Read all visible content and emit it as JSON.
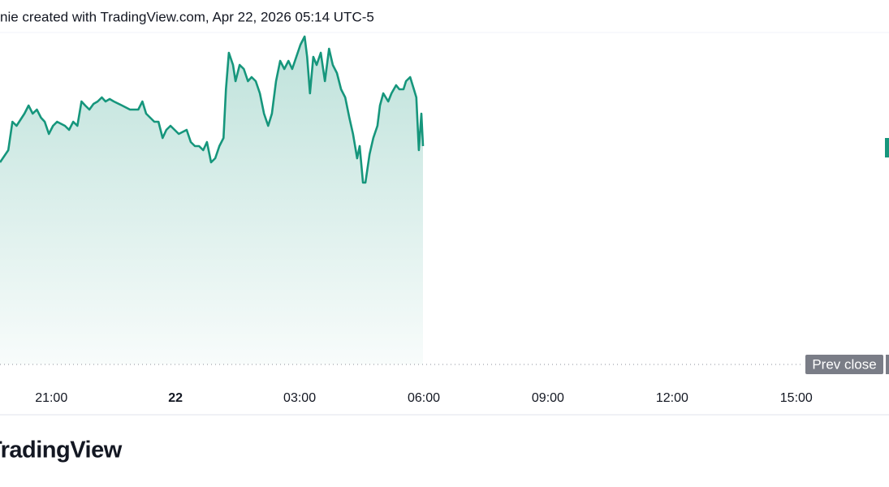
{
  "chart_data": {
    "type": "area",
    "title": "nie created with TradingView.com, Apr 22, 2026 05:14 UTC-5",
    "brand": "TradingView",
    "color": "#16967c",
    "x": [
      -4.24,
      -4.04,
      -3.94,
      -3.84,
      -3.65,
      -3.55,
      -3.45,
      -3.35,
      -3.25,
      -3.16,
      -3.06,
      -2.96,
      -2.86,
      -2.67,
      -2.57,
      -2.47,
      -2.37,
      -2.27,
      -2.18,
      -2.08,
      -1.98,
      -1.88,
      -1.78,
      -1.69,
      -1.59,
      -1.49,
      -1.29,
      -1.1,
      -0.9,
      -0.8,
      -0.71,
      -0.51,
      -0.41,
      -0.31,
      -0.22,
      -0.12,
      0.08,
      0.27,
      0.37,
      0.47,
      0.57,
      0.67,
      0.76,
      0.86,
      0.96,
      1.06,
      1.16,
      1.22,
      1.29,
      1.39,
      1.45,
      1.55,
      1.65,
      1.75,
      1.84,
      1.94,
      2.04,
      2.14,
      2.24,
      2.33,
      2.43,
      2.53,
      2.63,
      2.73,
      2.82,
      2.92,
      3.02,
      3.12,
      3.18,
      3.25,
      3.33,
      3.41,
      3.51,
      3.61,
      3.71,
      3.8,
      3.9,
      4.0,
      4.1,
      4.2,
      4.29,
      4.39,
      4.45,
      4.53,
      4.59,
      4.69,
      4.78,
      4.88,
      4.94,
      5.02,
      5.14,
      5.22,
      5.33,
      5.41,
      5.51,
      5.57,
      5.67,
      5.76,
      5.82,
      5.88,
      5.94,
      5.98
    ],
    "values": [
      249,
      264,
      299,
      294,
      309,
      319,
      309,
      314,
      304,
      299,
      284,
      294,
      299,
      294,
      289,
      299,
      294,
      324,
      319,
      314,
      321,
      324,
      329,
      324,
      327,
      324,
      319,
      314,
      314,
      324,
      309,
      299,
      299,
      279,
      289,
      294,
      284,
      289,
      274,
      269,
      269,
      264,
      274,
      249,
      254,
      269,
      279,
      339,
      384,
      369,
      349,
      369,
      364,
      349,
      354,
      349,
      334,
      309,
      294,
      309,
      349,
      374,
      364,
      374,
      364,
      379,
      394,
      404,
      379,
      334,
      379,
      369,
      384,
      349,
      389,
      369,
      359,
      339,
      329,
      304,
      284,
      254,
      269,
      224,
      224,
      259,
      279,
      294,
      319,
      334,
      324,
      334,
      344,
      339,
      339,
      349,
      354,
      339,
      329,
      264,
      309,
      269
    ],
    "xlim": [
      -4.24,
      17.24
    ],
    "xticks": [
      {
        "value": -3,
        "label": "21:00"
      },
      {
        "value": 0,
        "label": "22"
      },
      {
        "value": 3,
        "label": "03:00"
      },
      {
        "value": 6,
        "label": "06:00"
      },
      {
        "value": 9,
        "label": "09:00"
      },
      {
        "value": 12,
        "label": "12:00"
      },
      {
        "value": 15,
        "label": "15:00"
      }
    ],
    "ylim": [
      -61,
      409
    ],
    "reference_line": {
      "value": 0,
      "label": "Prev close"
    }
  }
}
